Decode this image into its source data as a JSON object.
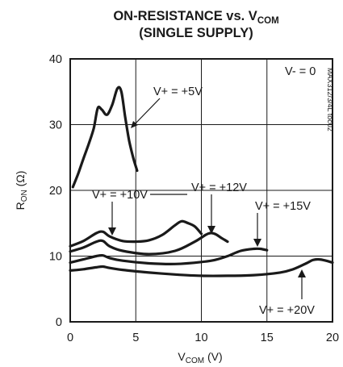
{
  "chart_data": {
    "type": "line",
    "title": {
      "line1_text": "ON-RESISTANCE vs. V",
      "line1_sub": "COM",
      "line2": "(SINGLE SUPPLY)"
    },
    "xlabel": {
      "main": "V",
      "sub": "COM",
      "suffix": " (V)"
    },
    "ylabel": {
      "main": "R",
      "sub": "ON",
      "suffix": " (Ω)"
    },
    "xlim": [
      0,
      20
    ],
    "ylim": [
      0,
      40
    ],
    "xticks": [
      0,
      5,
      10,
      15,
      20
    ],
    "yticks": [
      0,
      10,
      20,
      30,
      40
    ],
    "grid": true,
    "condition_label": "V- = 0",
    "part_code": "MAX312/3/4L toc02",
    "series": [
      {
        "name": "V+ = +5V",
        "x": [
          0.2,
          0.6,
          1.0,
          1.4,
          1.8,
          2.1,
          2.4,
          2.8,
          3.2,
          3.6,
          3.9,
          4.2,
          4.5,
          4.8,
          5.1
        ],
        "y": [
          20.5,
          22.5,
          24.8,
          27.0,
          29.5,
          32.5,
          32.3,
          31.5,
          33.0,
          35.5,
          35.0,
          31.0,
          27.5,
          25.0,
          23.0
        ]
      },
      {
        "name": "V+ = +10V",
        "x": [
          0,
          1,
          2,
          2.5,
          3,
          4,
          5,
          6,
          7,
          8,
          8.5,
          9,
          9.5,
          10
        ],
        "y": [
          11.5,
          12.3,
          13.5,
          13.7,
          13.0,
          12.3,
          12.2,
          12.4,
          13.2,
          14.7,
          15.3,
          15.0,
          14.5,
          13.4
        ]
      },
      {
        "name": "V+ = +12V",
        "x": [
          0,
          1,
          2,
          2.5,
          3,
          4,
          6,
          8,
          9.5,
          10.5,
          11,
          11.5,
          12
        ],
        "y": [
          10.7,
          11.3,
          12.2,
          12.3,
          11.5,
          10.8,
          10.3,
          10.8,
          12.2,
          13.4,
          13.4,
          12.8,
          12.2
        ]
      },
      {
        "name": "V+ = +15V",
        "x": [
          0,
          1,
          2,
          2.5,
          3,
          4,
          6,
          8,
          10,
          11,
          12,
          13,
          14,
          14.5,
          15
        ],
        "y": [
          9.0,
          9.5,
          10.0,
          10.1,
          9.7,
          9.3,
          8.9,
          8.8,
          9.1,
          9.4,
          10.0,
          10.8,
          11.1,
          11.1,
          10.9
        ]
      },
      {
        "name": "V+ = +20V",
        "x": [
          0,
          1,
          2,
          2.5,
          3,
          4,
          6,
          8,
          10,
          12,
          14,
          16,
          17,
          18,
          18.5,
          19,
          19.5,
          20
        ],
        "y": [
          7.8,
          8.0,
          8.3,
          8.4,
          8.2,
          7.9,
          7.5,
          7.2,
          7.0,
          7.0,
          7.1,
          7.5,
          8.0,
          8.9,
          9.4,
          9.5,
          9.3,
          9.0
        ]
      }
    ]
  }
}
